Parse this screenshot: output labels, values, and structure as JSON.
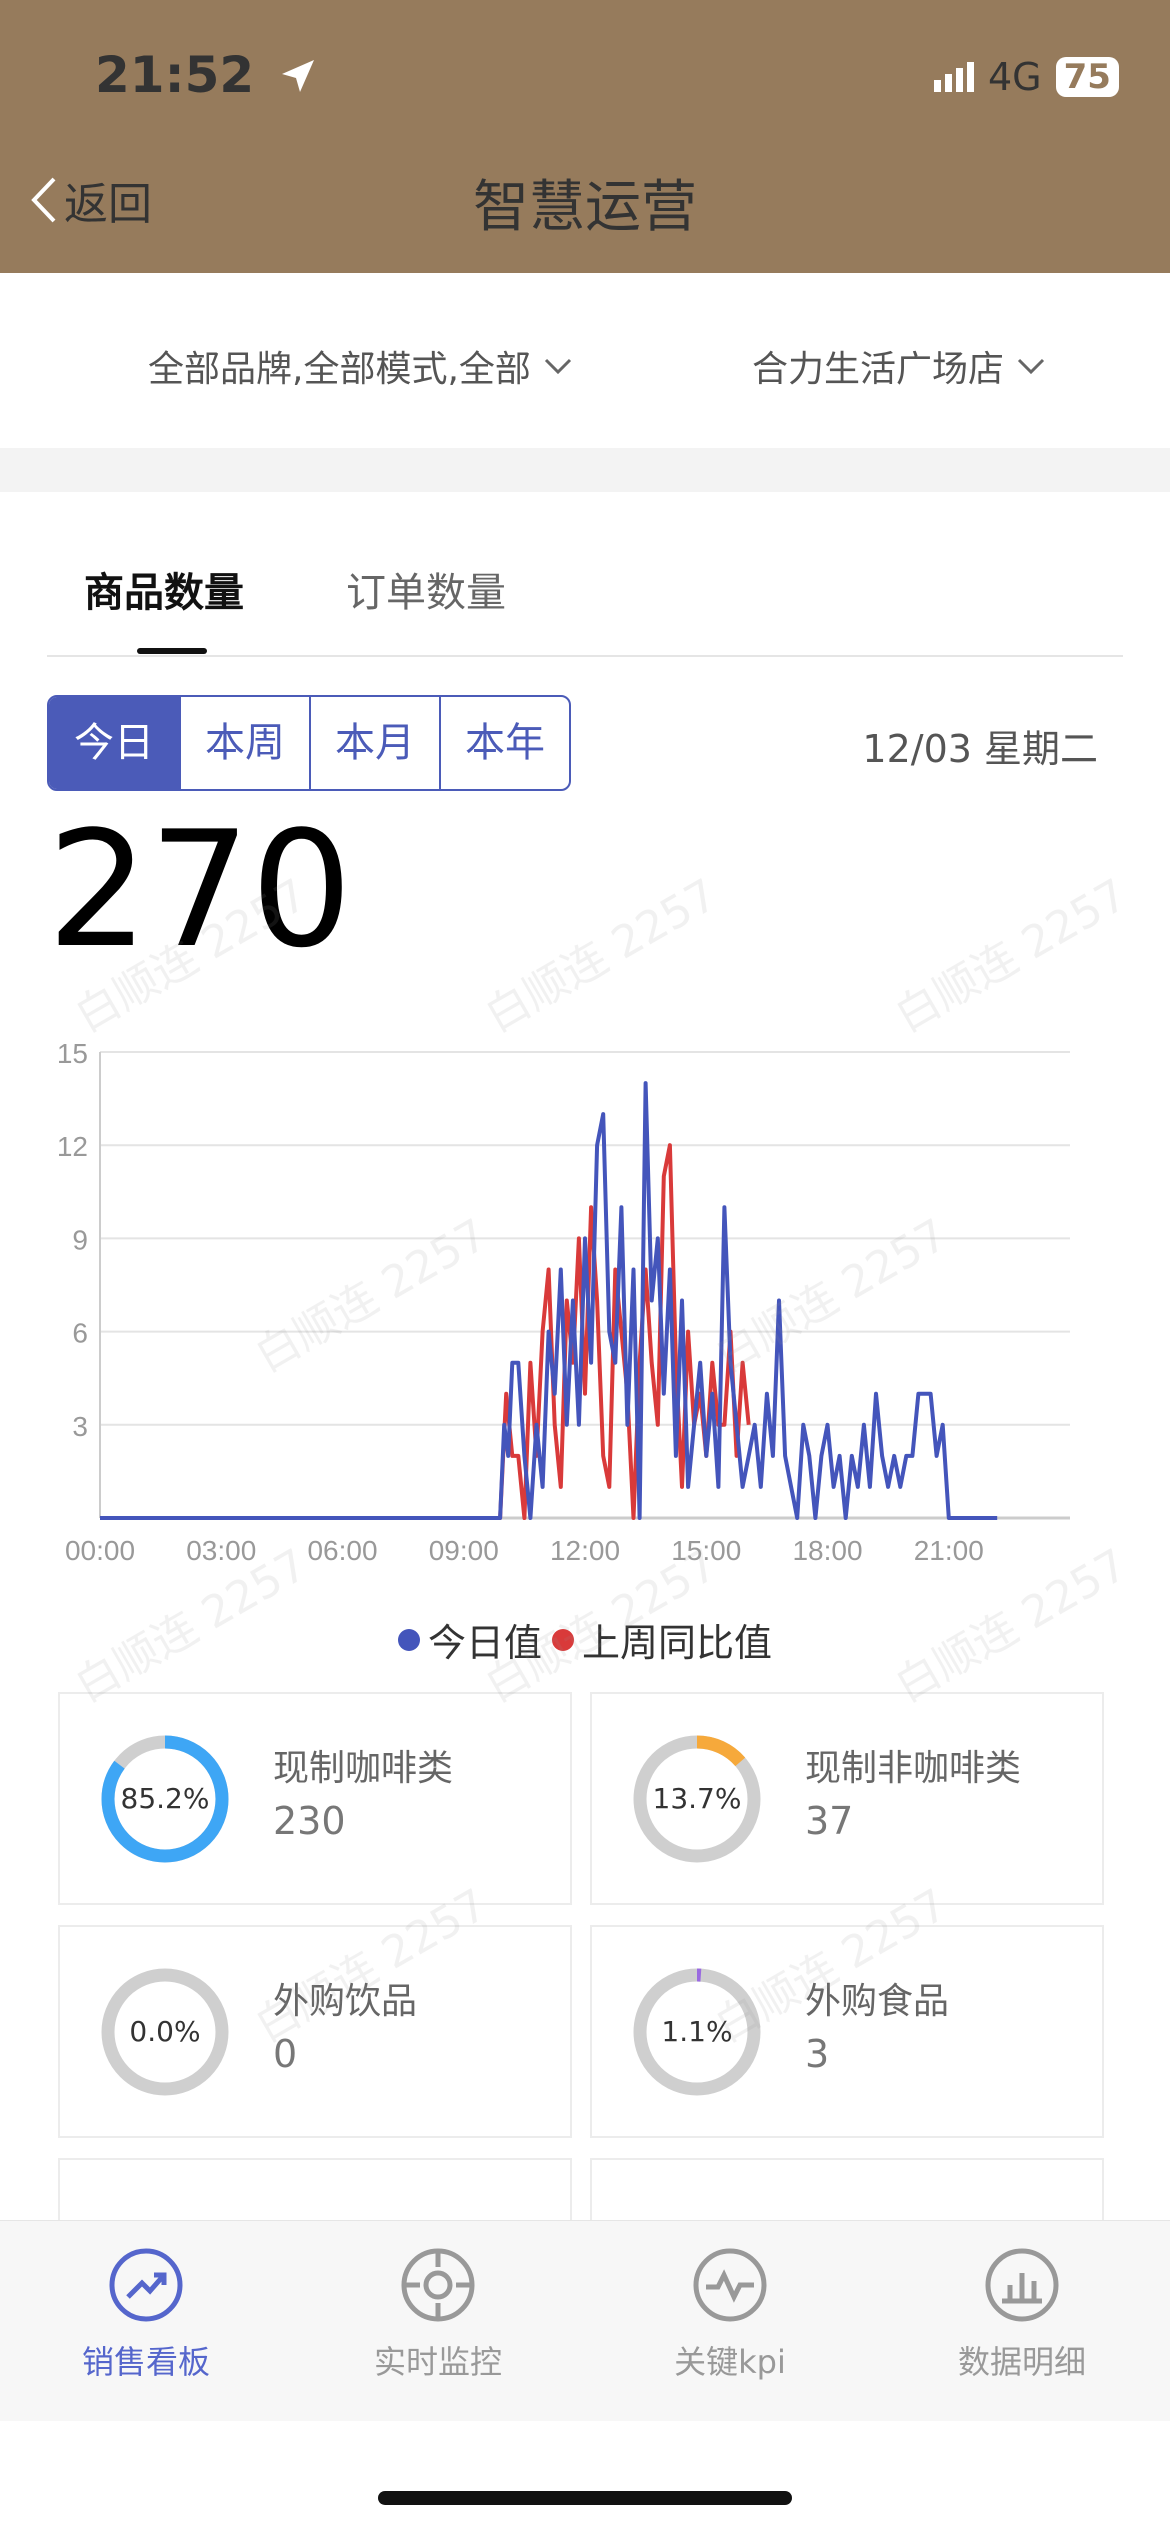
{
  "status": {
    "time": "21:52",
    "network": "4G",
    "battery": "75"
  },
  "nav": {
    "back_label": "返回",
    "title": "智慧运营"
  },
  "filters": {
    "brand": "全部品牌,全部模式,全部",
    "store": "合力生活广场店"
  },
  "tabs": [
    {
      "label": "商品数量"
    },
    {
      "label": "订单数量"
    }
  ],
  "periods": [
    "今日",
    "本周",
    "本月",
    "本年"
  ],
  "date_label": "12/03 星期二",
  "total": "270",
  "chart_data": {
    "type": "line",
    "ylim": [
      0,
      15
    ],
    "yticks": [
      "15",
      "12",
      "9",
      "6",
      "3"
    ],
    "xticks": [
      "00:00",
      "03:00",
      "06:00",
      "09:00",
      "12:00",
      "15:00",
      "18:00",
      "21:00"
    ],
    "x_unit_hours": [
      0,
      24
    ],
    "colors": {
      "today": "#4455bb",
      "last_week": "#d93a3a"
    },
    "series": [
      {
        "name": "今日值",
        "x": [
          0,
          9.9,
          10.0,
          10.1,
          10.2,
          10.35,
          10.5,
          10.65,
          10.8,
          10.95,
          11.1,
          11.25,
          11.4,
          11.55,
          11.7,
          11.85,
          12.0,
          12.15,
          12.3,
          12.45,
          12.6,
          12.75,
          12.9,
          13.05,
          13.2,
          13.35,
          13.5,
          13.65,
          13.8,
          13.95,
          14.1,
          14.25,
          14.4,
          14.55,
          14.7,
          14.85,
          15.0,
          15.15,
          15.3,
          15.45,
          15.6,
          15.75,
          15.9,
          16.05,
          16.2,
          16.35,
          16.5,
          16.65,
          16.8,
          16.95,
          17.1,
          17.25,
          17.4,
          17.55,
          17.7,
          17.85,
          18.0,
          18.15,
          18.3,
          18.45,
          18.6,
          18.75,
          18.9,
          19.05,
          19.2,
          19.35,
          19.5,
          19.65,
          19.8,
          19.95,
          20.1,
          20.25,
          20.4,
          20.55,
          20.7,
          20.85,
          21.0,
          21.15,
          21.3,
          21.45,
          21.6,
          21.75,
          21.9,
          22.2
        ],
        "y": [
          0,
          0,
          3,
          2,
          5,
          5,
          2,
          0,
          3,
          1,
          6,
          4,
          8,
          3,
          7,
          3,
          9,
          5,
          12,
          13,
          6,
          5,
          10,
          3,
          8,
          0,
          14,
          7,
          9,
          4,
          8,
          2,
          7,
          1,
          3,
          5,
          2,
          4,
          1,
          10,
          5,
          3,
          1,
          2,
          3,
          1,
          4,
          2,
          7,
          2,
          1,
          0,
          3,
          2,
          0,
          2,
          3,
          1,
          2,
          0,
          2,
          1,
          3,
          1,
          4,
          2,
          1,
          2,
          1,
          2,
          2,
          4,
          4,
          4,
          2,
          3,
          0,
          0,
          0,
          0,
          0,
          0,
          0,
          0
        ]
      },
      {
        "name": "上周同比值",
        "x": [
          0,
          9.9,
          10.05,
          10.2,
          10.35,
          10.5,
          10.65,
          10.8,
          10.95,
          11.1,
          11.25,
          11.4,
          11.55,
          11.7,
          11.85,
          12.0,
          12.15,
          12.3,
          12.45,
          12.6,
          12.75,
          12.9,
          13.05,
          13.2,
          13.35,
          13.5,
          13.65,
          13.8,
          13.95,
          14.1,
          14.25,
          14.4,
          14.55,
          14.7,
          14.85,
          15.0,
          15.15,
          15.3,
          15.45,
          15.6,
          15.75,
          15.9,
          16.05
        ],
        "y": [
          0,
          0,
          4,
          2,
          2,
          0,
          5,
          2,
          6,
          8,
          3,
          1,
          7,
          5,
          9,
          4,
          10,
          7,
          2,
          1,
          8,
          6,
          4,
          0,
          5,
          8,
          5,
          3,
          11,
          12,
          5,
          1,
          6,
          3,
          4,
          2,
          5,
          3,
          3,
          6,
          2,
          5,
          3
        ]
      }
    ]
  },
  "categories": [
    {
      "name": "现制咖啡类",
      "count": "230",
      "percent_label": "85.2%",
      "fraction": 0.852,
      "color": "#3ea6f5"
    },
    {
      "name": "现制非咖啡类",
      "count": "37",
      "percent_label": "13.7%",
      "fraction": 0.137,
      "color": "#f6a93b"
    },
    {
      "name": "外购饮品",
      "count": "0",
      "percent_label": "0.0%",
      "fraction": 0.0,
      "color": "#3ea6f5"
    },
    {
      "name": "外购食品",
      "count": "3",
      "percent_label": "1.1%",
      "fraction": 0.011,
      "color": "#9a6ae0"
    }
  ],
  "tabbar": [
    {
      "label": "销售看板",
      "icon": "trend-up-icon",
      "active": true
    },
    {
      "label": "实时监控",
      "icon": "target-icon",
      "active": false
    },
    {
      "label": "关键kpi",
      "icon": "pulse-icon",
      "active": false
    },
    {
      "label": "数据明细",
      "icon": "bar-chart-icon",
      "active": false
    }
  ],
  "watermark": "白顺连 2257"
}
